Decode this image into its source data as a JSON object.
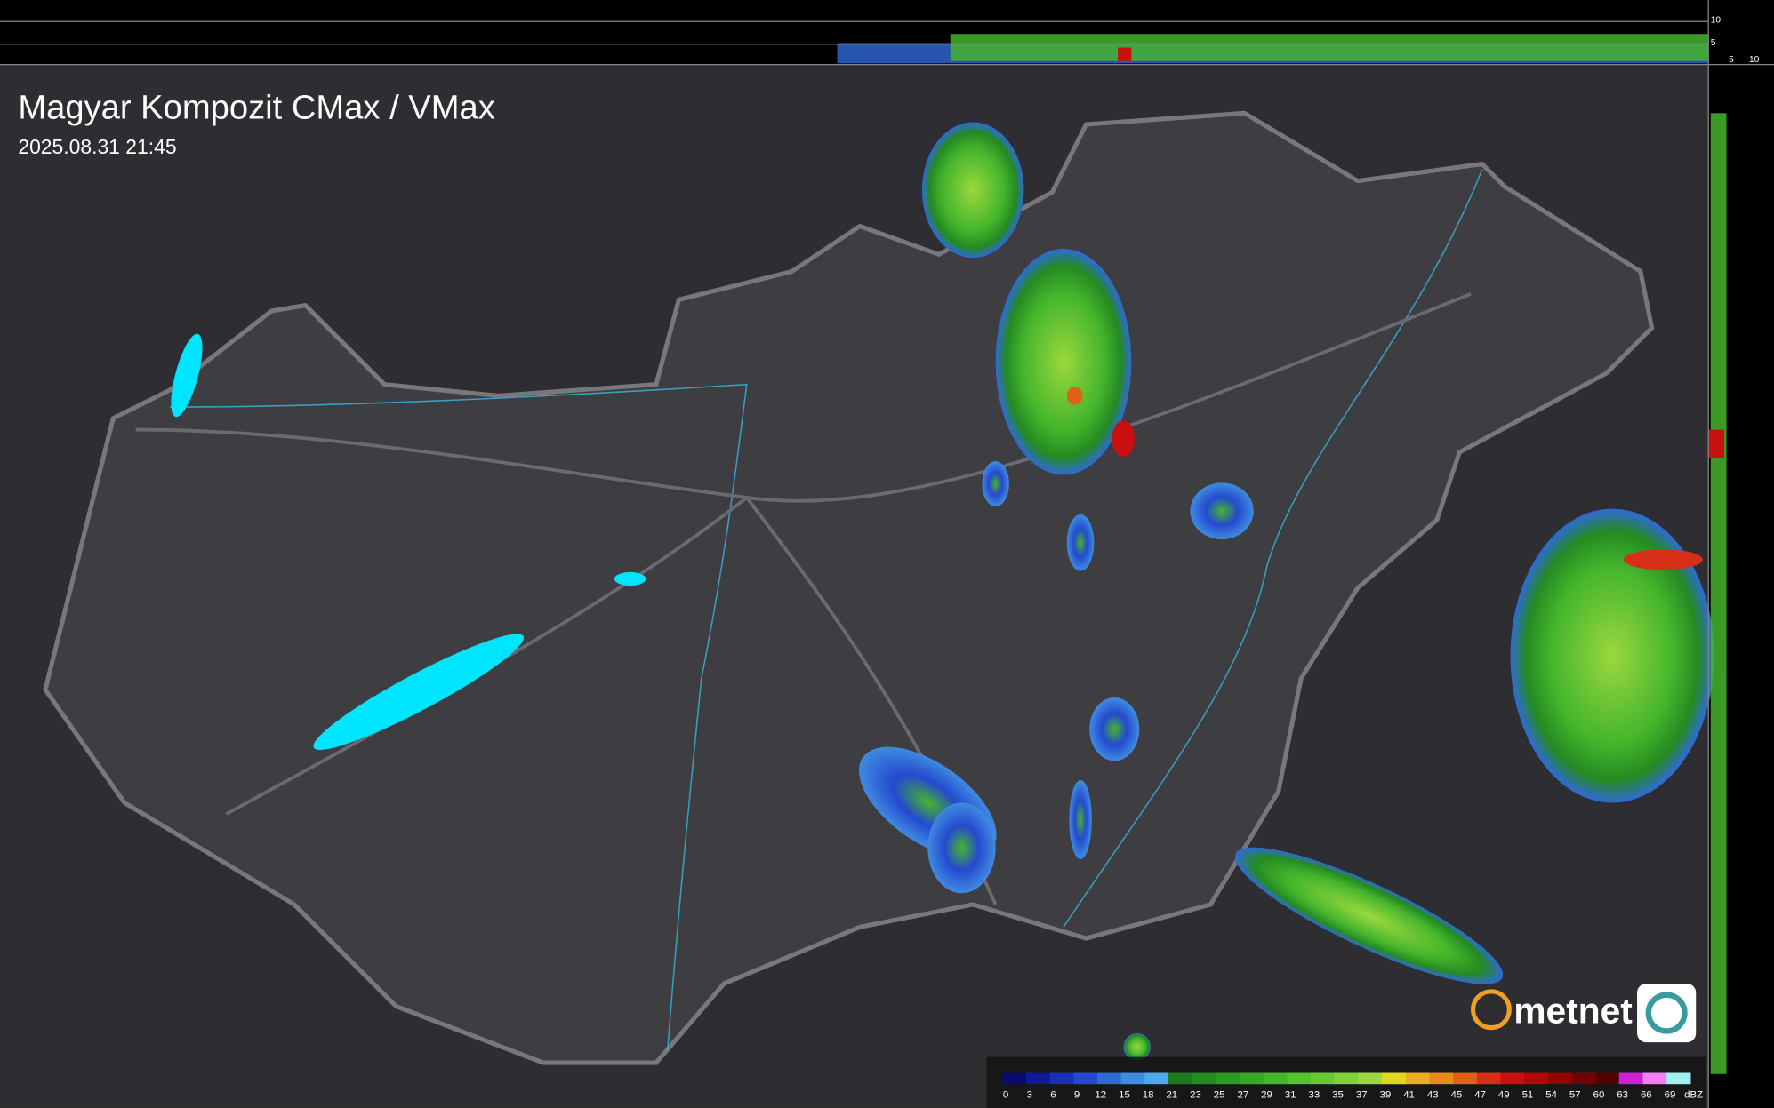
{
  "header": {
    "title": "Magyar Kompozit CMax / VMax",
    "timestamp": "2025.08.31 21:45"
  },
  "side_axes": {
    "top": [
      "10",
      "5"
    ],
    "bottom": [
      "5",
      "10"
    ]
  },
  "legend": {
    "unit": "dBZ",
    "entries": [
      {
        "value": 0,
        "color": "#0b0b6e"
      },
      {
        "value": 3,
        "color": "#0f1a9a"
      },
      {
        "value": 6,
        "color": "#1a2fb8"
      },
      {
        "value": 9,
        "color": "#2449d0"
      },
      {
        "value": 12,
        "color": "#2f6ad8"
      },
      {
        "value": 15,
        "color": "#3f8be0"
      },
      {
        "value": 18,
        "color": "#4fa8e8"
      },
      {
        "value": 21,
        "color": "#1f7a1f"
      },
      {
        "value": 23,
        "color": "#258a22"
      },
      {
        "value": 25,
        "color": "#2d9a25"
      },
      {
        "value": 27,
        "color": "#38a828"
      },
      {
        "value": 29,
        "color": "#45b52c"
      },
      {
        "value": 31,
        "color": "#55c030"
      },
      {
        "value": 33,
        "color": "#68c935"
      },
      {
        "value": 35,
        "color": "#80d23a"
      },
      {
        "value": 37,
        "color": "#9ad83e"
      },
      {
        "value": 39,
        "color": "#e0d820"
      },
      {
        "value": 41,
        "color": "#e8b020"
      },
      {
        "value": 43,
        "color": "#e88a1c"
      },
      {
        "value": 45,
        "color": "#e0601a"
      },
      {
        "value": 47,
        "color": "#d83018"
      },
      {
        "value": 49,
        "color": "#c81010"
      },
      {
        "value": 51,
        "color": "#b00808"
      },
      {
        "value": 54,
        "color": "#900606"
      },
      {
        "value": 57,
        "color": "#700404"
      },
      {
        "value": 60,
        "color": "#500202"
      },
      {
        "value": 63,
        "color": "#d020d0"
      },
      {
        "value": 66,
        "color": "#f080f0"
      },
      {
        "value": 69,
        "color": "#a0f0f0"
      }
    ]
  },
  "logo": {
    "text": "metnet"
  }
}
